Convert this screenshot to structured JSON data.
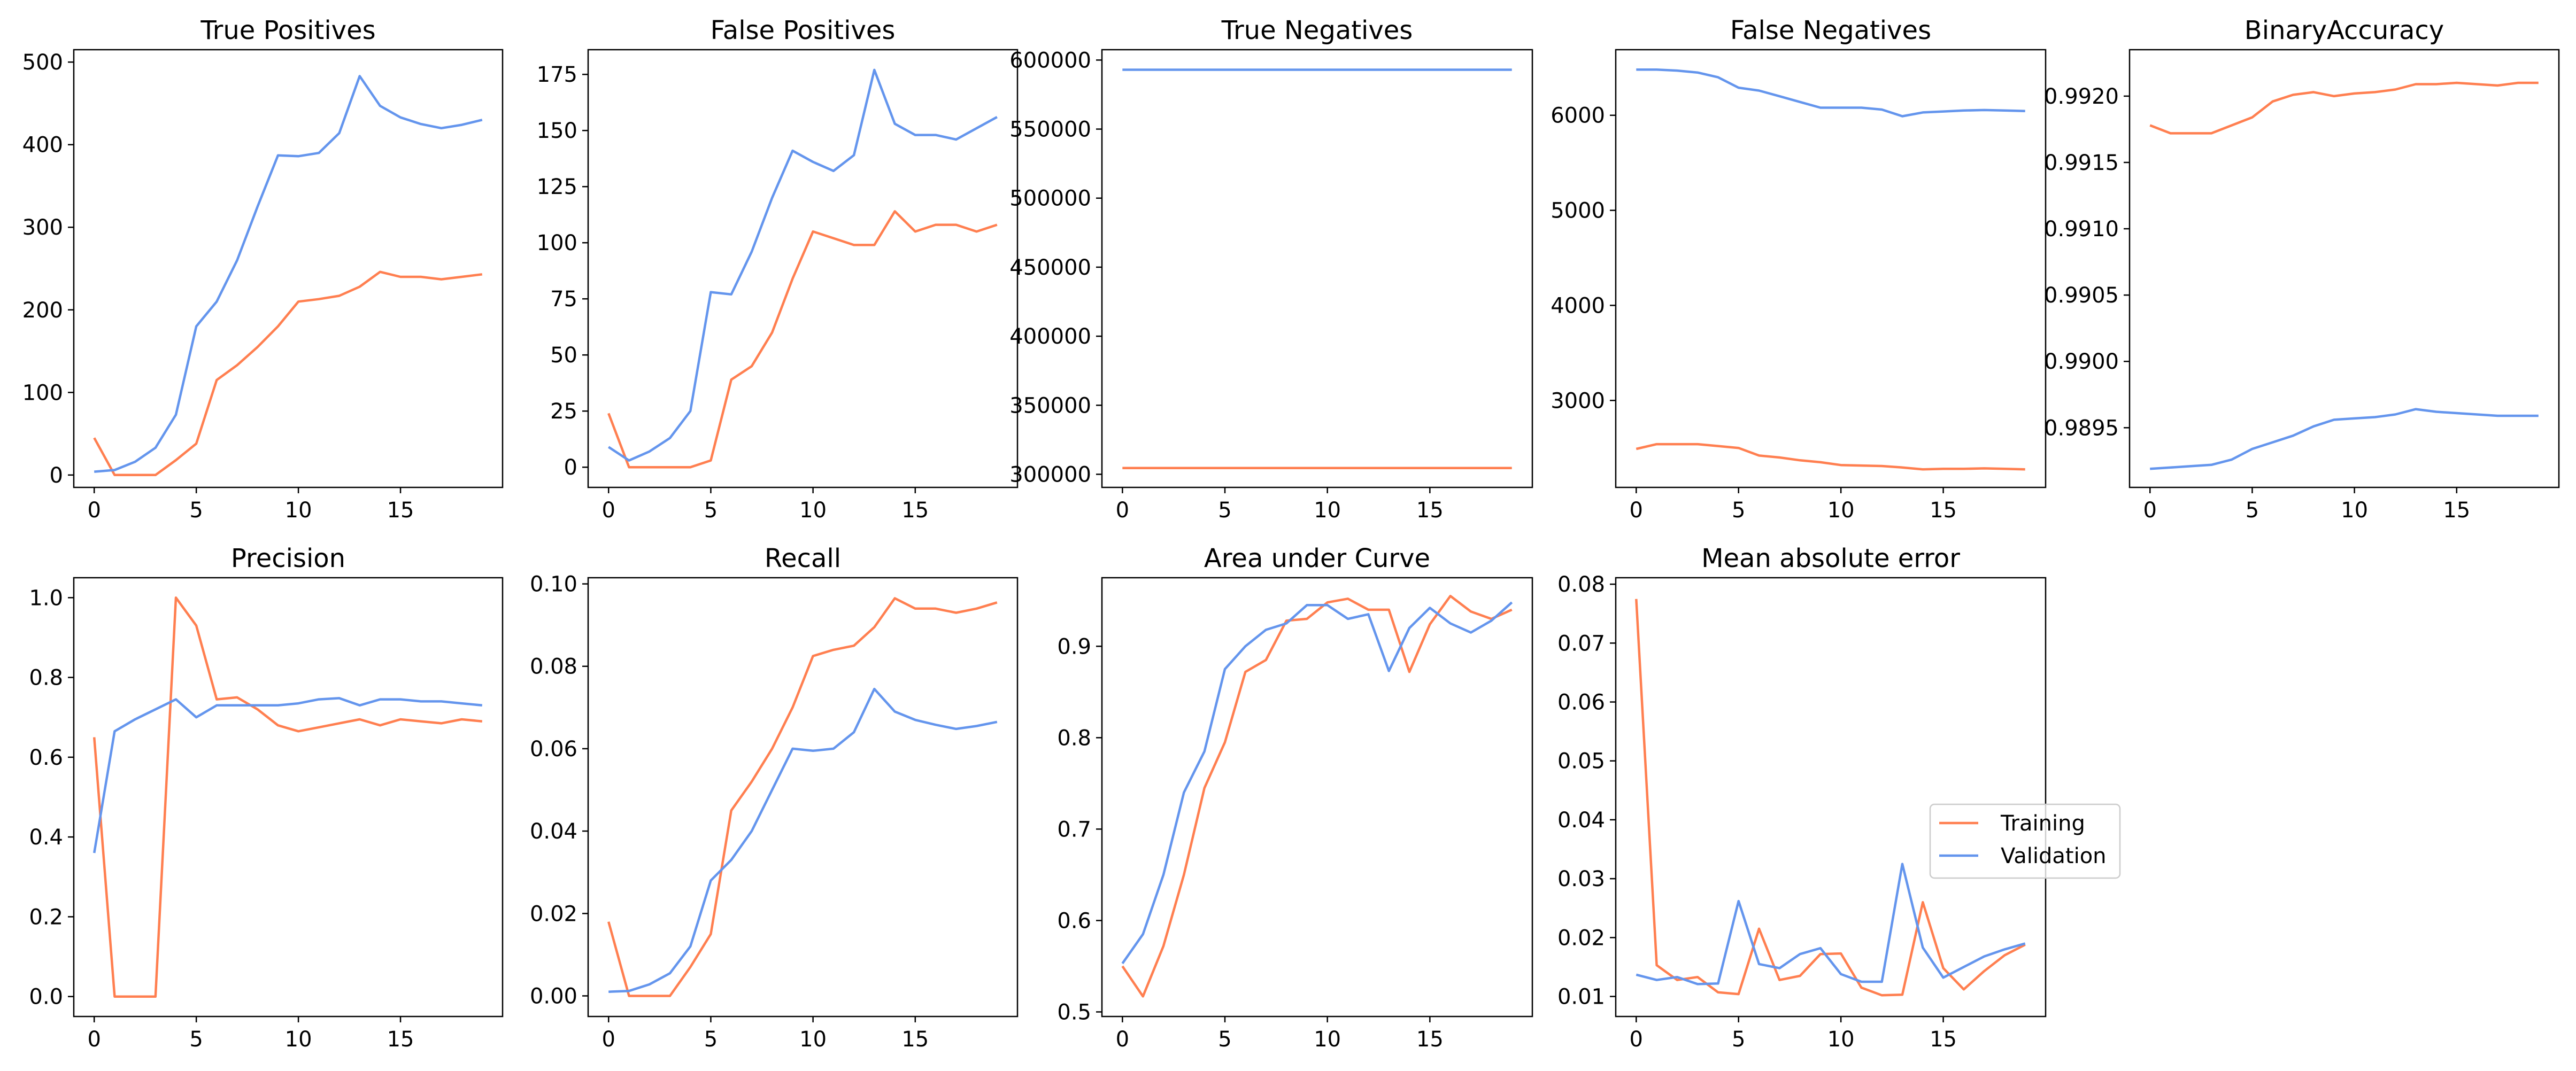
{
  "colors": {
    "training": "#ff7f50",
    "validation": "#6495ed"
  },
  "legend": {
    "training_label": "Training",
    "validation_label": "Validation"
  },
  "chart_data": [
    {
      "type": "line",
      "title": "True Positives",
      "x": [
        0,
        1,
        2,
        3,
        4,
        5,
        6,
        7,
        8,
        9,
        10,
        11,
        12,
        13,
        14,
        15,
        16,
        17,
        18,
        19
      ],
      "xlim": [
        -1,
        20
      ],
      "xticks": [
        0,
        5,
        10,
        15
      ],
      "xtick_labels": [
        "0",
        "5",
        "10",
        "15"
      ],
      "ylim": [
        -15,
        515
      ],
      "yticks": [
        0,
        100,
        200,
        300,
        400,
        500
      ],
      "ytick_labels": [
        "0",
        "100",
        "200",
        "300",
        "400",
        "500"
      ],
      "series": [
        {
          "name": "Training",
          "values": [
            45,
            0,
            0,
            0,
            18,
            38,
            115,
            133,
            155,
            180,
            210,
            213,
            217,
            228,
            246,
            240,
            240,
            237,
            240,
            243
          ]
        },
        {
          "name": "Validation",
          "values": [
            4,
            6,
            16,
            33,
            73,
            180,
            210,
            260,
            325,
            387,
            386,
            390,
            414,
            483,
            447,
            433,
            425,
            420,
            424,
            430
          ]
        }
      ]
    },
    {
      "type": "line",
      "title": "False Positives",
      "x": [
        0,
        1,
        2,
        3,
        4,
        5,
        6,
        7,
        8,
        9,
        10,
        11,
        12,
        13,
        14,
        15,
        16,
        17,
        18,
        19
      ],
      "xlim": [
        -1,
        20
      ],
      "xticks": [
        0,
        5,
        10,
        15
      ],
      "xtick_labels": [
        "0",
        "5",
        "10",
        "15"
      ],
      "ylim": [
        -9,
        186
      ],
      "yticks": [
        0,
        25,
        50,
        75,
        100,
        125,
        150,
        175
      ],
      "ytick_labels": [
        "0",
        "25",
        "50",
        "75",
        "100",
        "125",
        "150",
        "175"
      ],
      "series": [
        {
          "name": "Training",
          "values": [
            24,
            0,
            0,
            0,
            0,
            3,
            39,
            45,
            60,
            84,
            105,
            102,
            99,
            99,
            114,
            105,
            108,
            108,
            105,
            108
          ]
        },
        {
          "name": "Validation",
          "values": [
            9,
            3,
            7,
            13,
            25,
            78,
            77,
            96,
            120,
            141,
            136,
            132,
            139,
            177,
            153,
            148,
            148,
            146,
            151,
            156
          ]
        }
      ]
    },
    {
      "type": "line",
      "title": "True Negatives",
      "x": [
        0,
        1,
        2,
        3,
        4,
        5,
        6,
        7,
        8,
        9,
        10,
        11,
        12,
        13,
        14,
        15,
        16,
        17,
        18,
        19
      ],
      "xlim": [
        -1,
        20
      ],
      "xticks": [
        0,
        5,
        10,
        15
      ],
      "xtick_labels": [
        "0",
        "5",
        "10",
        "15"
      ],
      "ylim": [
        290500,
        607500
      ],
      "yticks": [
        300000,
        350000,
        400000,
        450000,
        500000,
        550000,
        600000
      ],
      "ytick_labels": [
        "300000",
        "350000",
        "400000",
        "450000",
        "500000",
        "550000",
        "600000"
      ],
      "series": [
        {
          "name": "Training",
          "values": [
            304500,
            304500,
            304500,
            304500,
            304500,
            304500,
            304500,
            304500,
            304500,
            304500,
            304500,
            304500,
            304500,
            304500,
            304500,
            304500,
            304500,
            304500,
            304500,
            304500
          ]
        },
        {
          "name": "Validation",
          "values": [
            593000,
            593000,
            593000,
            593000,
            593000,
            593000,
            593000,
            593000,
            593000,
            593000,
            593000,
            593000,
            593000,
            593000,
            593000,
            593000,
            593000,
            593000,
            593000,
            593000
          ]
        }
      ]
    },
    {
      "type": "line",
      "title": "False Negatives",
      "x": [
        0,
        1,
        2,
        3,
        4,
        5,
        6,
        7,
        8,
        9,
        10,
        11,
        12,
        13,
        14,
        15,
        16,
        17,
        18,
        19
      ],
      "xlim": [
        -1,
        20
      ],
      "xticks": [
        0,
        5,
        10,
        15
      ],
      "xtick_labels": [
        "0",
        "5",
        "10",
        "15"
      ],
      "ylim": [
        2085,
        6690
      ],
      "yticks": [
        3000,
        4000,
        5000,
        6000
      ],
      "ytick_labels": [
        "3000",
        "4000",
        "5000",
        "6000"
      ],
      "series": [
        {
          "name": "Training",
          "values": [
            2490,
            2540,
            2540,
            2540,
            2520,
            2500,
            2420,
            2400,
            2370,
            2350,
            2320,
            2315,
            2310,
            2295,
            2275,
            2280,
            2280,
            2285,
            2280,
            2275
          ]
        },
        {
          "name": "Validation",
          "values": [
            6480,
            6480,
            6470,
            6450,
            6400,
            6290,
            6260,
            6200,
            6140,
            6080,
            6080,
            6080,
            6060,
            5990,
            6030,
            6040,
            6050,
            6055,
            6050,
            6045
          ]
        }
      ]
    },
    {
      "type": "line",
      "title": "BinaryAccuracy",
      "x": [
        0,
        1,
        2,
        3,
        4,
        5,
        6,
        7,
        8,
        9,
        10,
        11,
        12,
        13,
        14,
        15,
        16,
        17,
        18,
        19
      ],
      "xlim": [
        -1,
        20
      ],
      "xticks": [
        0,
        5,
        10,
        15
      ],
      "xtick_labels": [
        "0",
        "5",
        "10",
        "15"
      ],
      "ylim": [
        0.98905,
        0.99235
      ],
      "yticks": [
        0.9895,
        0.99,
        0.9905,
        0.991,
        0.9915,
        0.992
      ],
      "ytick_labels": [
        "0.9895",
        "0.9900",
        "0.9905",
        "0.9910",
        "0.9915",
        "0.9920"
      ],
      "series": [
        {
          "name": "Training",
          "values": [
            0.99178,
            0.99172,
            0.99172,
            0.99172,
            0.99178,
            0.99184,
            0.99196,
            0.99201,
            0.99203,
            0.992,
            0.99202,
            0.99203,
            0.99205,
            0.99209,
            0.99209,
            0.9921,
            0.99209,
            0.99208,
            0.9921,
            0.9921
          ]
        },
        {
          "name": "Validation",
          "values": [
            0.98919,
            0.9892,
            0.98921,
            0.98922,
            0.98926,
            0.98934,
            0.98939,
            0.98944,
            0.98951,
            0.98956,
            0.98957,
            0.98958,
            0.9896,
            0.98964,
            0.98962,
            0.98961,
            0.9896,
            0.98959,
            0.98959,
            0.98959
          ]
        }
      ]
    },
    {
      "type": "line",
      "title": "Precision",
      "x": [
        0,
        1,
        2,
        3,
        4,
        5,
        6,
        7,
        8,
        9,
        10,
        11,
        12,
        13,
        14,
        15,
        16,
        17,
        18,
        19
      ],
      "xlim": [
        -1,
        20
      ],
      "xticks": [
        0,
        5,
        10,
        15
      ],
      "xtick_labels": [
        "0",
        "5",
        "10",
        "15"
      ],
      "ylim": [
        -0.05,
        1.05
      ],
      "yticks": [
        0,
        0.2,
        0.4,
        0.6,
        0.8,
        1.0
      ],
      "ytick_labels": [
        "0.0",
        "0.2",
        "0.4",
        "0.6",
        "0.8",
        "1.0"
      ],
      "series": [
        {
          "name": "Training",
          "values": [
            0.65,
            0,
            0,
            0,
            1.0,
            0.93,
            0.745,
            0.75,
            0.72,
            0.68,
            0.665,
            0.675,
            0.685,
            0.695,
            0.68,
            0.695,
            0.69,
            0.685,
            0.695,
            0.69
          ]
        },
        {
          "name": "Validation",
          "values": [
            0.36,
            0.665,
            0.695,
            0.72,
            0.745,
            0.7,
            0.73,
            0.73,
            0.73,
            0.73,
            0.735,
            0.745,
            0.748,
            0.73,
            0.745,
            0.745,
            0.74,
            0.74,
            0.735,
            0.73
          ]
        }
      ]
    },
    {
      "type": "line",
      "title": "Recall",
      "x": [
        0,
        1,
        2,
        3,
        4,
        5,
        6,
        7,
        8,
        9,
        10,
        11,
        12,
        13,
        14,
        15,
        16,
        17,
        18,
        19
      ],
      "xlim": [
        -1,
        20
      ],
      "xticks": [
        0,
        5,
        10,
        15
      ],
      "xtick_labels": [
        "0",
        "5",
        "10",
        "15"
      ],
      "ylim": [
        -0.005,
        0.1015
      ],
      "yticks": [
        0,
        0.02,
        0.04,
        0.06,
        0.08,
        0.1
      ],
      "ytick_labels": [
        "0.00",
        "0.02",
        "0.04",
        "0.06",
        "0.08",
        "0.10"
      ],
      "series": [
        {
          "name": "Training",
          "values": [
            0.018,
            0,
            0,
            0,
            0.007,
            0.015,
            0.045,
            0.052,
            0.06,
            0.07,
            0.0825,
            0.084,
            0.085,
            0.0895,
            0.0965,
            0.094,
            0.094,
            0.093,
            0.094,
            0.0955
          ]
        },
        {
          "name": "Validation",
          "values": [
            0.001,
            0.0012,
            0.0028,
            0.0055,
            0.012,
            0.028,
            0.033,
            0.04,
            0.05,
            0.06,
            0.0595,
            0.06,
            0.064,
            0.0745,
            0.069,
            0.067,
            0.0658,
            0.0648,
            0.0655,
            0.0665
          ]
        }
      ]
    },
    {
      "type": "line",
      "title": "Area under Curve",
      "x": [
        0,
        1,
        2,
        3,
        4,
        5,
        6,
        7,
        8,
        9,
        10,
        11,
        12,
        13,
        14,
        15,
        16,
        17,
        18,
        19
      ],
      "xlim": [
        -1,
        20
      ],
      "xticks": [
        0,
        5,
        10,
        15
      ],
      "xtick_labels": [
        "0",
        "5",
        "10",
        "15"
      ],
      "ylim": [
        0.495,
        0.975
      ],
      "yticks": [
        0.5,
        0.6,
        0.7,
        0.8,
        0.9
      ],
      "ytick_labels": [
        "0.5",
        "0.6",
        "0.7",
        "0.8",
        "0.9"
      ],
      "series": [
        {
          "name": "Training",
          "values": [
            0.55,
            0.517,
            0.572,
            0.65,
            0.745,
            0.795,
            0.872,
            0.885,
            0.928,
            0.93,
            0.948,
            0.952,
            0.94,
            0.94,
            0.872,
            0.924,
            0.955,
            0.938,
            0.93,
            0.94
          ]
        },
        {
          "name": "Validation",
          "values": [
            0.553,
            0.585,
            0.65,
            0.74,
            0.785,
            0.875,
            0.9,
            0.918,
            0.925,
            0.945,
            0.945,
            0.93,
            0.935,
            0.873,
            0.92,
            0.942,
            0.925,
            0.915,
            0.928,
            0.948
          ]
        }
      ]
    },
    {
      "type": "line",
      "title": "Mean absolute error",
      "x": [
        0,
        1,
        2,
        3,
        4,
        5,
        6,
        7,
        8,
        9,
        10,
        11,
        12,
        13,
        14,
        15,
        16,
        17,
        18,
        19
      ],
      "xlim": [
        -1,
        20
      ],
      "xticks": [
        0,
        5,
        10,
        15
      ],
      "xtick_labels": [
        "0",
        "5",
        "10",
        "15"
      ],
      "ylim": [
        0.0066,
        0.0811
      ],
      "yticks": [
        0.01,
        0.02,
        0.03,
        0.04,
        0.05,
        0.06,
        0.07,
        0.08
      ],
      "ytick_labels": [
        "0.01",
        "0.02",
        "0.03",
        "0.04",
        "0.05",
        "0.06",
        "0.07",
        "0.08"
      ],
      "legend_position": "center-right",
      "series": [
        {
          "name": "Training",
          "values": [
            0.0775,
            0.0153,
            0.0128,
            0.0133,
            0.0107,
            0.0104,
            0.0215,
            0.0128,
            0.0135,
            0.0172,
            0.0173,
            0.0115,
            0.0102,
            0.0103,
            0.026,
            0.0148,
            0.0112,
            0.0143,
            0.017,
            0.0188
          ]
        },
        {
          "name": "Validation",
          "values": [
            0.0137,
            0.0128,
            0.0133,
            0.0121,
            0.0122,
            0.0262,
            0.0155,
            0.0148,
            0.0172,
            0.0182,
            0.0138,
            0.0125,
            0.0125,
            0.0325,
            0.0183,
            0.0132,
            0.015,
            0.0168,
            0.018,
            0.019
          ]
        }
      ]
    }
  ]
}
